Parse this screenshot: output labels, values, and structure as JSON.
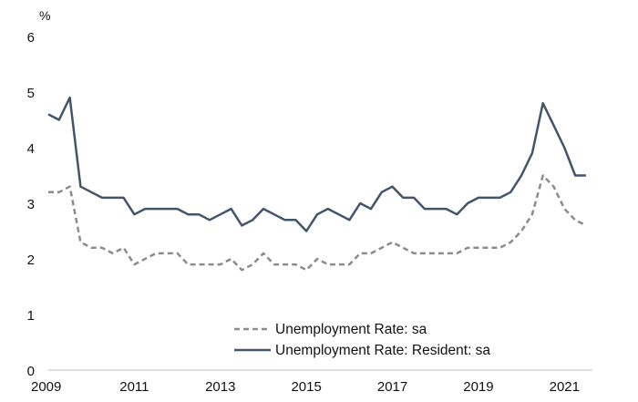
{
  "chart_data": {
    "type": "line",
    "title": "",
    "ylabel": "%",
    "xlabel": "",
    "ylim": [
      0,
      6
    ],
    "xlim": [
      2009,
      2021.65
    ],
    "grid": false,
    "legend_position": "bottom-right",
    "yticks": [
      "0",
      "1",
      "2",
      "3",
      "4",
      "5",
      "6"
    ],
    "xticks": [
      "2009",
      "2011",
      "2013",
      "2015",
      "2017",
      "2019",
      "2021"
    ],
    "series": [
      {
        "name": "Unemployment Rate: sa",
        "color": "#8c8c8c",
        "style": "dashed",
        "x": [
          2009.0,
          2009.25,
          2009.5,
          2009.75,
          2010.0,
          2010.25,
          2010.5,
          2010.75,
          2011.0,
          2011.25,
          2011.5,
          2011.75,
          2012.0,
          2012.25,
          2012.5,
          2012.75,
          2013.0,
          2013.25,
          2013.5,
          2013.75,
          2014.0,
          2014.25,
          2014.5,
          2014.75,
          2015.0,
          2015.25,
          2015.5,
          2015.75,
          2016.0,
          2016.25,
          2016.5,
          2016.75,
          2017.0,
          2017.25,
          2017.5,
          2017.75,
          2018.0,
          2018.25,
          2018.5,
          2018.75,
          2019.0,
          2019.25,
          2019.5,
          2019.75,
          2020.0,
          2020.25,
          2020.5,
          2020.75,
          2021.0,
          2021.25,
          2021.5
        ],
        "values": [
          3.2,
          3.2,
          3.3,
          2.3,
          2.2,
          2.2,
          2.1,
          2.2,
          1.9,
          2.0,
          2.1,
          2.1,
          2.1,
          1.9,
          1.9,
          1.9,
          1.9,
          2.0,
          1.8,
          1.9,
          2.1,
          1.9,
          1.9,
          1.9,
          1.8,
          2.0,
          1.9,
          1.9,
          1.9,
          2.1,
          2.1,
          2.2,
          2.3,
          2.2,
          2.1,
          2.1,
          2.1,
          2.1,
          2.1,
          2.2,
          2.2,
          2.2,
          2.2,
          2.3,
          2.5,
          2.8,
          3.5,
          3.3,
          2.9,
          2.7,
          2.6
        ]
      },
      {
        "name": "Unemployment Rate: Resident: sa",
        "color": "#44546a",
        "style": "solid",
        "x": [
          2009.0,
          2009.25,
          2009.5,
          2009.75,
          2010.0,
          2010.25,
          2010.5,
          2010.75,
          2011.0,
          2011.25,
          2011.5,
          2011.75,
          2012.0,
          2012.25,
          2012.5,
          2012.75,
          2013.0,
          2013.25,
          2013.5,
          2013.75,
          2014.0,
          2014.25,
          2014.5,
          2014.75,
          2015.0,
          2015.25,
          2015.5,
          2015.75,
          2016.0,
          2016.25,
          2016.5,
          2016.75,
          2017.0,
          2017.25,
          2017.5,
          2017.75,
          2018.0,
          2018.25,
          2018.5,
          2018.75,
          2019.0,
          2019.25,
          2019.5,
          2019.75,
          2020.0,
          2020.25,
          2020.5,
          2020.75,
          2021.0,
          2021.25,
          2021.5
        ],
        "values": [
          4.6,
          4.5,
          4.9,
          3.3,
          3.2,
          3.1,
          3.1,
          3.1,
          2.8,
          2.9,
          2.9,
          2.9,
          2.9,
          2.8,
          2.8,
          2.7,
          2.8,
          2.9,
          2.6,
          2.7,
          2.9,
          2.8,
          2.7,
          2.7,
          2.5,
          2.8,
          2.9,
          2.8,
          2.7,
          3.0,
          2.9,
          3.2,
          3.3,
          3.1,
          3.1,
          2.9,
          2.9,
          2.9,
          2.8,
          3.0,
          3.1,
          3.1,
          3.1,
          3.2,
          3.5,
          3.9,
          4.8,
          4.4,
          4.0,
          3.5,
          3.5
        ]
      }
    ]
  }
}
